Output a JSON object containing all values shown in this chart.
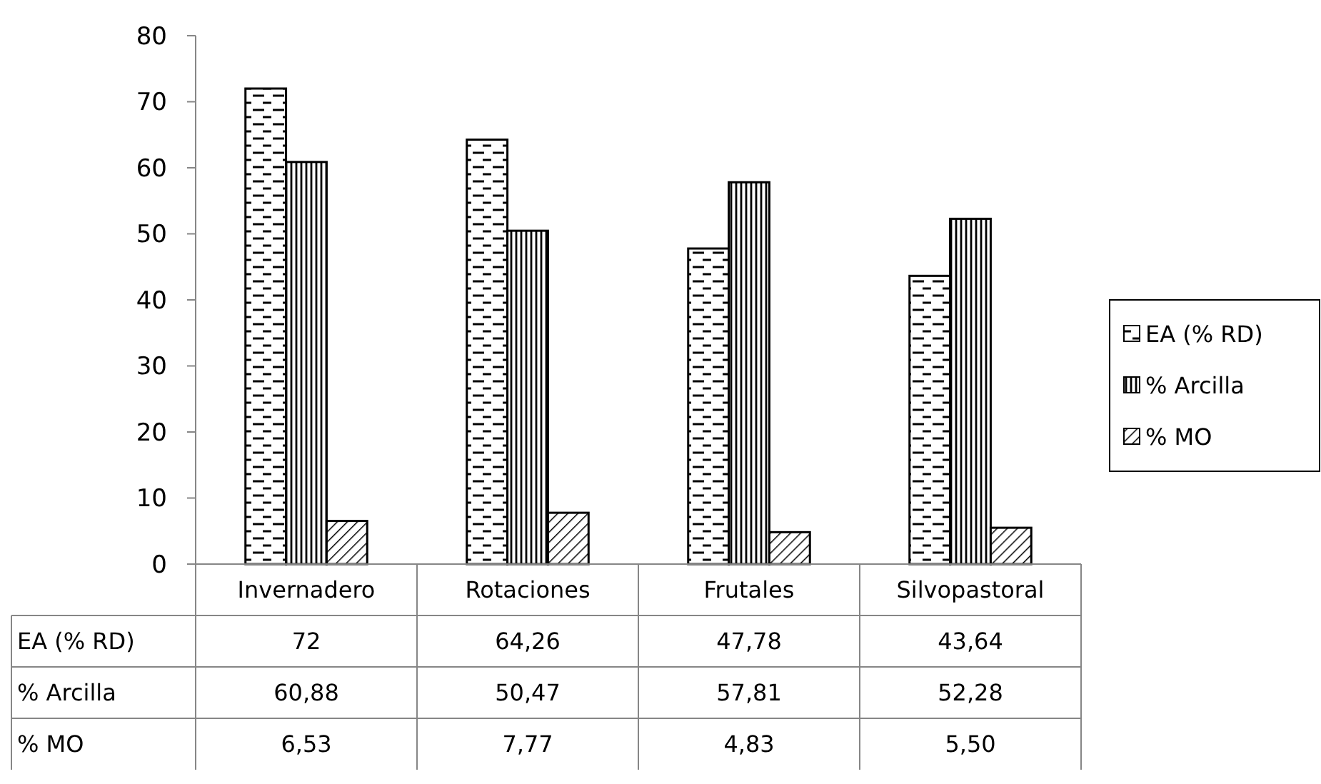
{
  "chart_data": {
    "type": "bar",
    "categories": [
      "Invernadero",
      "Rotaciones",
      "Frutales",
      "Silvopastoral"
    ],
    "series": [
      {
        "name": "EA (% RD)",
        "color": "#000000",
        "values": [
          72,
          64.26,
          47.78,
          43.64
        ],
        "value_labels": [
          "72",
          "64,26",
          "47,78",
          "43,64"
        ]
      },
      {
        "name": "% Arcilla",
        "color": "#000000",
        "values": [
          60.88,
          50.47,
          57.81,
          52.28
        ],
        "value_labels": [
          "60,88",
          "50,47",
          "57,81",
          "52,28"
        ]
      },
      {
        "name": "% MO",
        "color": "#000000",
        "values": [
          6.53,
          7.77,
          4.83,
          5.5
        ],
        "value_labels": [
          "6,53",
          "7,77",
          "4,83",
          "5,50"
        ]
      }
    ],
    "ylim": [
      0,
      80
    ],
    "yticks": [
      0,
      10,
      20,
      30,
      40,
      50,
      60,
      70,
      80
    ],
    "grid": false,
    "legend": "right"
  }
}
